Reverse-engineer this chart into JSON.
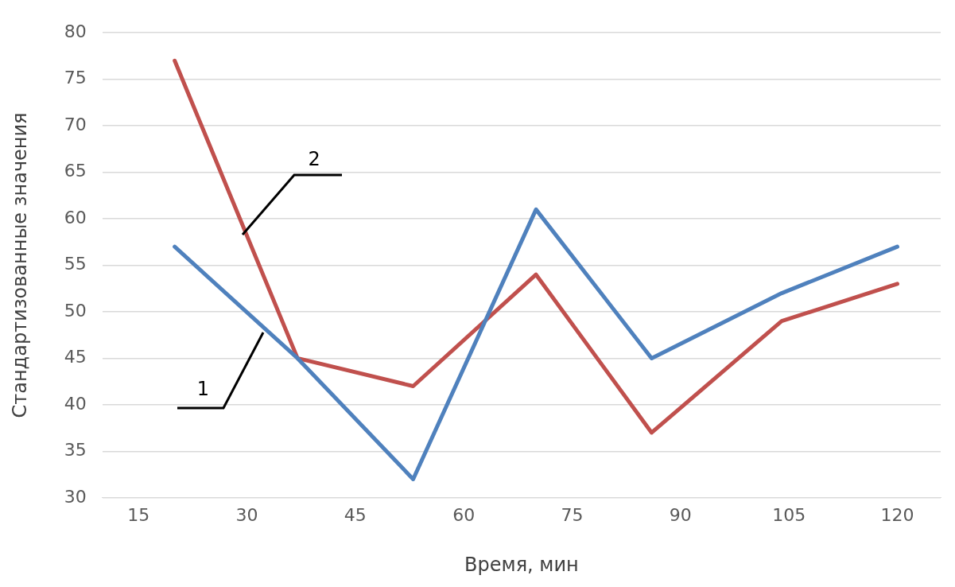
{
  "chart_data": {
    "type": "line",
    "xlabel": "Время, мин",
    "ylabel": "Стандартизованные значения",
    "x": [
      20,
      37,
      53,
      70,
      86,
      104,
      120
    ],
    "series": [
      {
        "color": "#4f81bd",
        "values": [
          57,
          45,
          32,
          61,
          45,
          52,
          57
        ]
      },
      {
        "color": "#c0504d",
        "values": [
          77,
          45,
          42,
          54,
          37,
          49,
          53
        ]
      }
    ],
    "annotations": [
      {
        "text": "1",
        "x": 32.3,
        "y": 47.8
      },
      {
        "text": "2",
        "x": 29.4,
        "y": 58.3
      }
    ],
    "xlim": [
      10,
      126
    ],
    "xticks": [
      15,
      30,
      45,
      60,
      75,
      90,
      105,
      120
    ],
    "ylim": [
      30,
      80
    ],
    "yticks": [
      30,
      35,
      40,
      45,
      50,
      55,
      60,
      65,
      70,
      75,
      80
    ],
    "grid": "y",
    "marker": "none",
    "line_style": "solid"
  }
}
